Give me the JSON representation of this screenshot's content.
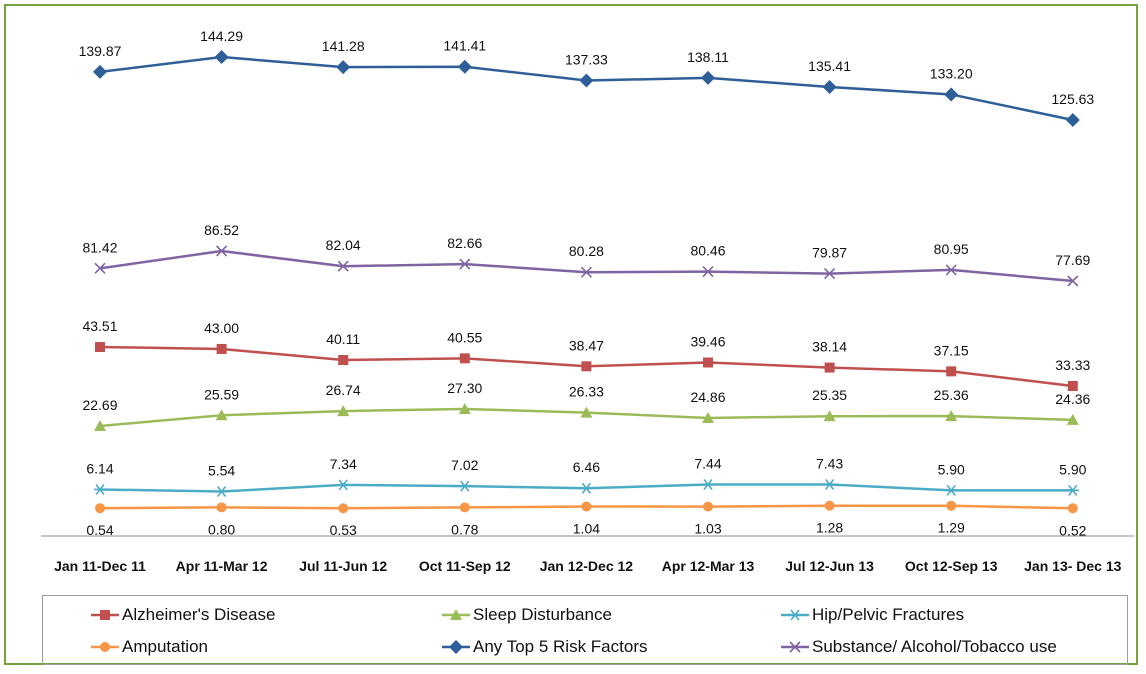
{
  "chart_data": {
    "type": "line",
    "title": "",
    "xlabel": "",
    "ylabel": "",
    "categories": [
      "Jan 11-Dec 11",
      "Apr 11-Mar 12",
      "Jul 11-Jun 12",
      "Oct 11-Sep 12",
      "Jan 12-Dec 12",
      "Apr 12-Mar 13",
      "Jul 12-Jun 13",
      "Oct 12-Sep 13",
      "Jan 13- Dec 13"
    ],
    "ylim": [
      0,
      150
    ],
    "grid": false,
    "legend_position": "bottom",
    "series": [
      {
        "name": "Alzheimer's Disease",
        "color": "#c0504d",
        "marker": "square",
        "label_position": "above",
        "values": [
          43.51,
          43.0,
          40.11,
          40.55,
          38.47,
          39.46,
          38.14,
          37.15,
          33.33
        ],
        "labels": [
          "43.51",
          "43.00",
          "40.11",
          "40.55",
          "38.47",
          "39.46",
          "38.14",
          "37.15",
          "33.33"
        ]
      },
      {
        "name": "Sleep Disturbance",
        "color": "#9bbb59",
        "marker": "triangle",
        "label_position": "above",
        "values": [
          22.69,
          25.59,
          26.74,
          27.3,
          26.33,
          24.86,
          25.35,
          25.36,
          24.36
        ],
        "labels": [
          "22.69",
          "25.59",
          "26.74",
          "27.30",
          "26.33",
          "24.86",
          "25.35",
          "25.36",
          "24.36"
        ]
      },
      {
        "name": "Hip/Pelvic Fractures",
        "color": "#4bacc6",
        "marker": "star",
        "label_position": "above",
        "values": [
          6.14,
          5.54,
          7.34,
          7.02,
          6.46,
          7.44,
          7.43,
          5.9,
          5.9
        ],
        "labels": [
          "6.14",
          "5.54",
          "7.34",
          "7.02",
          "6.46",
          "7.44",
          "7.43",
          "5.90",
          "5.90"
        ]
      },
      {
        "name": "Amputation",
        "color": "#f79646",
        "marker": "circle",
        "label_position": "below",
        "values": [
          0.54,
          0.8,
          0.53,
          0.78,
          1.04,
          1.03,
          1.28,
          1.29,
          0.52
        ],
        "labels": [
          "0.54",
          "0.80",
          "0.53",
          "0.78",
          "1.04",
          "1.03",
          "1.28",
          "1.29",
          "0.52"
        ]
      },
      {
        "name": "Any Top 5 Risk Factors",
        "color": "#2f5f98",
        "marker": "diamond",
        "label_position": "above",
        "values": [
          139.87,
          144.29,
          141.28,
          141.41,
          137.33,
          138.11,
          135.41,
          133.2,
          125.63
        ],
        "labels": [
          "139.87",
          "144.29",
          "141.28",
          "141.41",
          "137.33",
          "138.11",
          "135.41",
          "133.20",
          "125.63"
        ]
      },
      {
        "name": "Substance/ Alcohol/Tobacco use",
        "color": "#8064a2",
        "marker": "x",
        "label_position": "above",
        "values": [
          81.42,
          86.52,
          82.04,
          82.66,
          80.28,
          80.46,
          79.87,
          80.95,
          77.69
        ],
        "labels": [
          "81.42",
          "86.52",
          "82.04",
          "82.66",
          "80.28",
          "80.46",
          "79.87",
          "80.95",
          "77.69"
        ]
      }
    ]
  }
}
